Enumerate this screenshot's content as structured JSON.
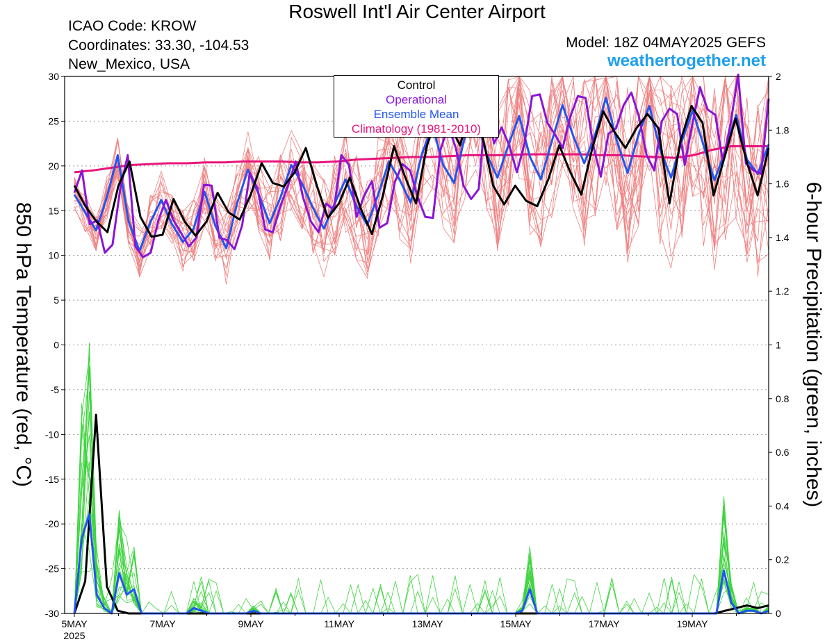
{
  "title": "Roswell Int'l Air Center Airport",
  "icao": "ICAO Code: KROW",
  "coords": "Coordinates: 33.30, -104.53",
  "region": "New_Mexico, USA",
  "model": "Model: 18Z 04MAY2025 GEFS",
  "site": "weathertogether.net",
  "chart_data": {
    "type": "line",
    "ylabel_left": "850 hPa Temperature (red, °C)",
    "ylabel_right": "6-hour Precipitation (green, inches)",
    "y_left_range": [
      -30,
      30
    ],
    "y_left_ticks": [
      "30",
      "25",
      "20",
      "15",
      "10",
      "5",
      "0",
      "-5",
      "-10",
      "-15",
      "-20",
      "-25",
      "-30"
    ],
    "y_right_range": [
      0,
      2
    ],
    "y_right_ticks": [
      "2",
      "1.8",
      "1.6",
      "1.4",
      "1.2",
      "1",
      "0.8",
      "0.6",
      "0.4",
      "0.2",
      "0"
    ],
    "x_range_days": [
      0,
      15.75
    ],
    "x_ticks": [
      "5MAY",
      "7MAY",
      "9MAY",
      "11MAY",
      "13MAY",
      "15MAY",
      "17MAY",
      "19MAY"
    ],
    "x_year": "2025",
    "grid": "dotted horizontal",
    "legend_position": "top-center",
    "legend": [
      {
        "name": "Control",
        "color": "#000000"
      },
      {
        "name": "Operational",
        "color": "#8a14d8"
      },
      {
        "name": "Ensemble Mean",
        "color": "#2255f0"
      },
      {
        "name": "Climatology (1981-2010)",
        "color": "#e8147a"
      }
    ],
    "temp_series": [
      {
        "name": "Control",
        "color": "#000000",
        "width": 3,
        "values": [
          17.8,
          15.5,
          13.8,
          12.6,
          17.8,
          20.5,
          14.3,
          12.1,
          12.3,
          16.3,
          13.8,
          12.2,
          13.8,
          17.0,
          14.8,
          14.0,
          16.8,
          20.3,
          18.1,
          17.7,
          19.3,
          22.0,
          17.8,
          14.2,
          15.8,
          18.7,
          15.2,
          12.4,
          16.7,
          22.2,
          18.8,
          15.8,
          22.3,
          25.8,
          24.7,
          22.3,
          26.7,
          23.5,
          17.8,
          15.7,
          17.8,
          16.1,
          15.5,
          18.5,
          22.3,
          19.3,
          16.8,
          22.0,
          26.1,
          23.8,
          22.0,
          24.2,
          25.8,
          24.2,
          15.8,
          22.8,
          26.7,
          24.8,
          16.7,
          21.0,
          25.3,
          20.5,
          16.7,
          22.0
        ]
      },
      {
        "name": "Operational",
        "color": "#8a14d8",
        "width": 3,
        "values": [
          17.0,
          19.5,
          13.5,
          13.9,
          10.3,
          11.2,
          17.4,
          21.2,
          11.0,
          9.8,
          10.3,
          13.9,
          16.2,
          13.9,
          12.5,
          11.0,
          12.0,
          17.9,
          17.8,
          12.0,
          11.7,
          10.7,
          13.4,
          19.2,
          17.5,
          12.9,
          12.6,
          15.5,
          17.8,
          20.5,
          16.4,
          13.8,
          12.6,
          15.8,
          15.1,
          21.2,
          20.1,
          14.3,
          16.7,
          18.3,
          13.1,
          13.6,
          18.2,
          20.2,
          19.5,
          16.5,
          14.3,
          14.2,
          21.8,
          24.5,
          22.0,
          17.8,
          16.3,
          17.4,
          27.3,
          22.5,
          24.3,
          22.3,
          19.3,
          22.5,
          27.8,
          28.0,
          24.8,
          23.5,
          22.0,
          25.5,
          27.8,
          27.6,
          22.3,
          18.8,
          23.6,
          24.2,
          26.8,
          28.2,
          25.5,
          21.2,
          19.5,
          25.0,
          26.4,
          25.8,
          20.1,
          24.7,
          28.8,
          26.3,
          25.7,
          20.5,
          24.7,
          30.2,
          20.3,
          19.5,
          19.1,
          27.5
        ]
      },
      {
        "name": "Ensemble Mean",
        "color": "#2255f0",
        "width": 3,
        "values": [
          16.8,
          14.8,
          12.8,
          16.5,
          21.2,
          13.8,
          10.5,
          13.7,
          16.2,
          13.5,
          11.5,
          13.0,
          17.1,
          13.3,
          10.8,
          15.8,
          19.6,
          16.8,
          13.6,
          16.5,
          20.1,
          18.0,
          15.3,
          13.0,
          15.8,
          18.5,
          15.5,
          13.4,
          16.8,
          20.5,
          18.4,
          15.9,
          21.2,
          24.5,
          20.1,
          18.1,
          23.3,
          25.6,
          21.3,
          18.7,
          22.3,
          25.6,
          21.0,
          18.5,
          22.7,
          26.8,
          23.3,
          20.3,
          23.5,
          27.6,
          22.8,
          19.2,
          23.5,
          26.7,
          21.8,
          18.7,
          22.8,
          26.2,
          22.3,
          18.4,
          21.7,
          25.7,
          20.7,
          19.1,
          22.4
        ]
      },
      {
        "name": "Climatology (1981-2010)",
        "color": "#e8147a",
        "width": 3,
        "values": [
          19.3,
          19.5,
          19.8,
          20.1,
          20.2,
          20.3,
          20.3,
          20.4,
          20.4,
          20.5,
          20.5,
          20.5,
          20.4,
          20.4,
          20.5,
          20.7,
          20.8,
          20.9,
          21.0,
          21.0,
          21.1,
          21.2,
          21.2,
          21.2,
          21.3,
          21.3,
          21.3,
          21.3,
          21.2,
          21.2,
          21.1,
          21.0,
          20.9,
          21.2,
          21.8,
          22.2,
          22.2,
          22.2
        ]
      }
    ],
    "precip_series": [
      {
        "name": "Control",
        "color": "#000000",
        "width": 3,
        "values": [
          0.0,
          0.12,
          0.74,
          0.1,
          0.01,
          0.0,
          0.0,
          0.0,
          0.0,
          0.0,
          0.0,
          0.0,
          0.0,
          0.0,
          0.0,
          0.0,
          0.0,
          0.0,
          0.0,
          0.0,
          0.0,
          0.0,
          0.0,
          0.0,
          0.0,
          0.0,
          0.0,
          0.0,
          0.0,
          0.0,
          0.0,
          0.0,
          0.0,
          0.0,
          0.0,
          0.0,
          0.0,
          0.0,
          0.0,
          0.0,
          0.0,
          0.0,
          0.0,
          0.0,
          0.0,
          0.0,
          0.0,
          0.0,
          0.0,
          0.0,
          0.0,
          0.0,
          0.0,
          0.0,
          0.0,
          0.0,
          0.0,
          0.0,
          0.0,
          0.0,
          0.01,
          0.02,
          0.03,
          0.02,
          0.03
        ]
      },
      {
        "name": "Ensemble Mean",
        "color": "#2255f0",
        "width": 3,
        "values": [
          0.0,
          0.28,
          0.37,
          0.07,
          0.02,
          0.0,
          0.15,
          0.07,
          0.09,
          0.0,
          0.0,
          0.0,
          0.0,
          0.0,
          0.0,
          0.0,
          0.02,
          0.01,
          0.0,
          0.0,
          0.0,
          0.0,
          0.0,
          0.0,
          0.01,
          0.0,
          0.0,
          0.0,
          0.0,
          0.0,
          0.0,
          0.0,
          0.0,
          0.0,
          0.0,
          0.0,
          0.0,
          0.0,
          0.0,
          0.0,
          0.0,
          0.0,
          0.0,
          0.0,
          0.0,
          0.0,
          0.0,
          0.0,
          0.0,
          0.0,
          0.0,
          0.0,
          0.0,
          0.0,
          0.0,
          0.0,
          0.0,
          0.0,
          0.0,
          0.0,
          0.01,
          0.09,
          0.0,
          0.0,
          0.0,
          0.0,
          0.0,
          0.0,
          0.0,
          0.0,
          0.0,
          0.0,
          0.0,
          0.0,
          0.0,
          0.0,
          0.0,
          0.0,
          0.0,
          0.0,
          0.0,
          0.0,
          0.0,
          0.0,
          0.0,
          0.0,
          0.0,
          0.16,
          0.04,
          0.0,
          0.01,
          0.01,
          0.0,
          0.01
        ]
      }
    ]
  }
}
